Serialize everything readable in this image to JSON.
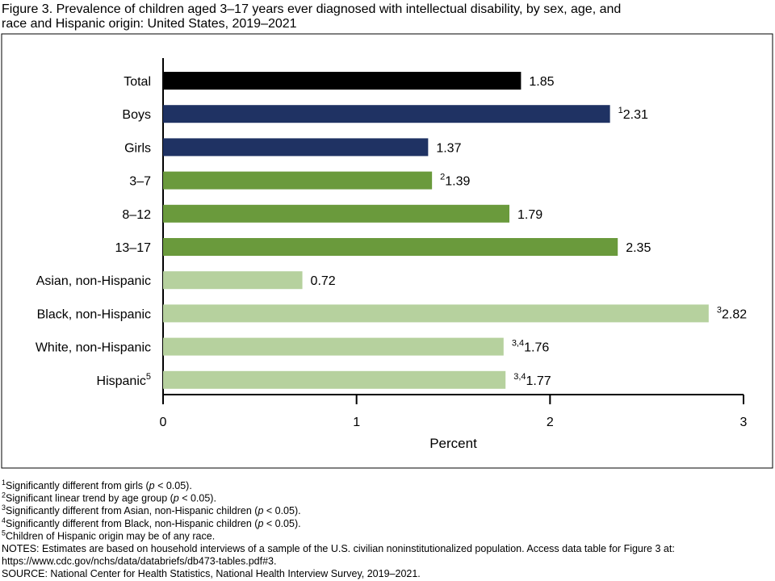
{
  "chart_data": {
    "type": "hbar",
    "title": [
      "Figure 3. Prevalence of children aged 3–17 years ever diagnosed with intellectual disability, by sex, age, and",
      "race and Hispanic origin: United States, 2019–2021"
    ],
    "categories": [
      "Total",
      "Boys",
      "Girls",
      "3–7",
      "8–12",
      "13–17",
      "Asian, non-Hispanic",
      "Black, non-Hispanic",
      "White, non-Hispanic",
      "Hispanic"
    ],
    "category_notes": [
      null,
      null,
      null,
      null,
      null,
      null,
      null,
      null,
      null,
      "5"
    ],
    "values": [
      1.85,
      2.31,
      1.37,
      1.39,
      1.79,
      2.35,
      0.72,
      2.82,
      1.76,
      1.77
    ],
    "value_label_notes": [
      null,
      "1",
      null,
      "2",
      null,
      null,
      null,
      "3",
      "3,4",
      "3,4"
    ],
    "colors": [
      "#000000",
      "#1f3263",
      "#1f3263",
      "#6a9a3c",
      "#6a9a3c",
      "#6a9a3c",
      "#b6d19e",
      "#b6d19e",
      "#b6d19e",
      "#b6d19e"
    ],
    "xlim": [
      0,
      3
    ],
    "xticks": [
      0,
      1,
      2,
      3
    ],
    "xlabel": "Percent",
    "footnotes": [
      {
        "sup": "1",
        "parts": [
          "Significantly different from girls (",
          "p",
          " < 0.05)."
        ]
      },
      {
        "sup": "2",
        "parts": [
          "Significant linear trend by age group (",
          "p",
          " < 0.05)."
        ]
      },
      {
        "sup": "3",
        "parts": [
          "Significantly different from Asian, non-Hispanic children (",
          "p",
          " < 0.05)."
        ]
      },
      {
        "sup": "4",
        "parts": [
          "Significantly different from Black, non-Hispanic children (",
          "p",
          " < 0.05)."
        ]
      },
      {
        "sup": "5",
        "parts": [
          "Children of Hispanic origin may be of any race."
        ]
      }
    ],
    "notes": [
      "NOTES: Estimates are based on household interviews of a sample of the U.S. civilian noninstitutionalized population. Access data table for Figure 3 at:",
      "https://www.cdc.gov/nchs/data/databriefs/db473-tables.pdf#3."
    ],
    "source": "SOURCE: National Center for Health Statistics, National Health Interview Survey, 2019–2021."
  }
}
